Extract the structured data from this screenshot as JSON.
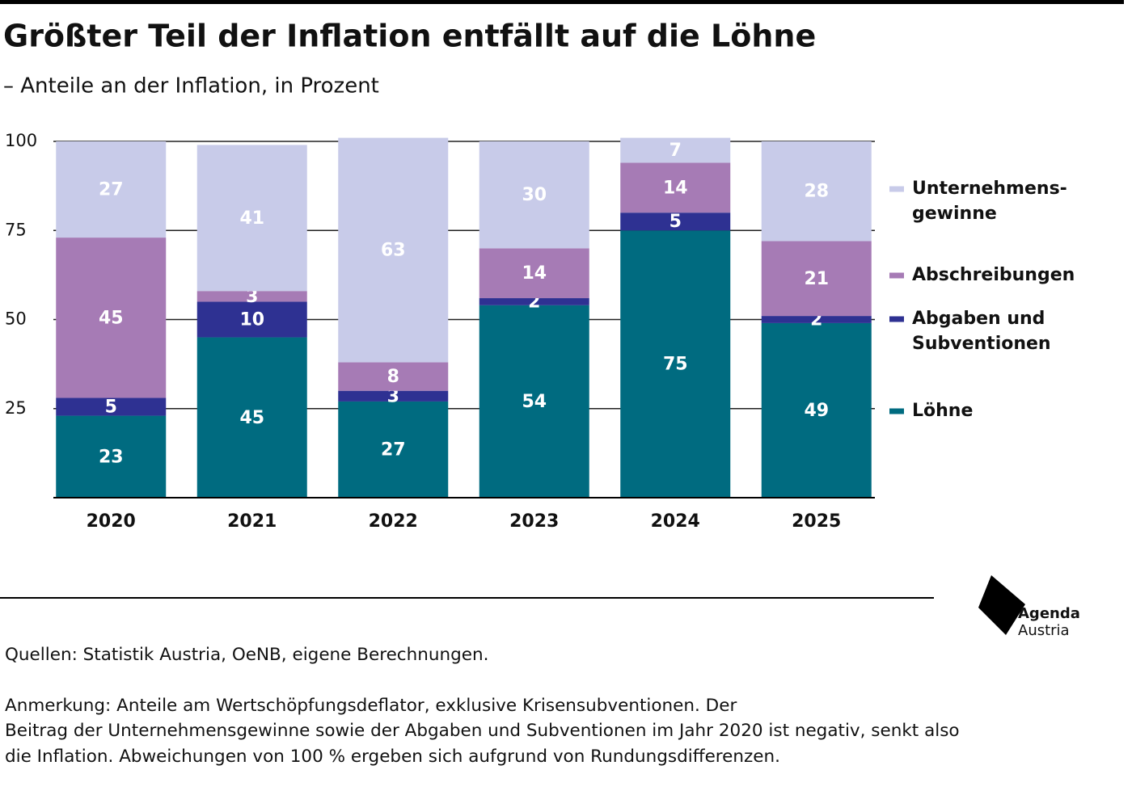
{
  "chart_data": {
    "type": "stacked_bar",
    "title": "Größter Teil der Inflation entfällt auf die Löhne",
    "subtitle": "– Anteile an der Inflation, in Prozent",
    "categories": [
      "2020",
      "2021",
      "2022",
      "2023",
      "2024",
      "2025"
    ],
    "series": [
      {
        "name": "Löhne",
        "color": "#006b80",
        "values": [
          23,
          45,
          27,
          54,
          75,
          49
        ]
      },
      {
        "name": "Abgaben und\nSubventionen",
        "color": "#2e3192",
        "values": [
          5,
          10,
          3,
          2,
          5,
          2
        ]
      },
      {
        "name": "Abschreibungen",
        "color": "#a67bb5",
        "values": [
          45,
          3,
          8,
          14,
          14,
          21
        ]
      },
      {
        "name": "Unternehmens-\ngewinne",
        "color": "#c8cbe9",
        "values": [
          27,
          41,
          63,
          30,
          7,
          28
        ]
      }
    ],
    "ylim": [
      0,
      100
    ],
    "yticks": [
      25,
      50,
      75,
      100
    ],
    "grid": true,
    "legend": "right"
  },
  "footer": {
    "sources": "Quellen: Statistik Austria, OeNB, eigene Berechnungen.",
    "note": "Anmerkung: Anteile am Wertschöpfungsdeflator, exklusive Krisensubventionen. Der\nBeitrag der Unternehmensgewinne sowie der Abgaben und Subventionen im Jahr 2020 ist negativ, senkt also\ndie Inflation. Abweichungen von 100 % ergeben sich aufgrund von Rundungsdifferenzen."
  },
  "logo": {
    "line1": "Agenda",
    "line2": "Austria"
  }
}
